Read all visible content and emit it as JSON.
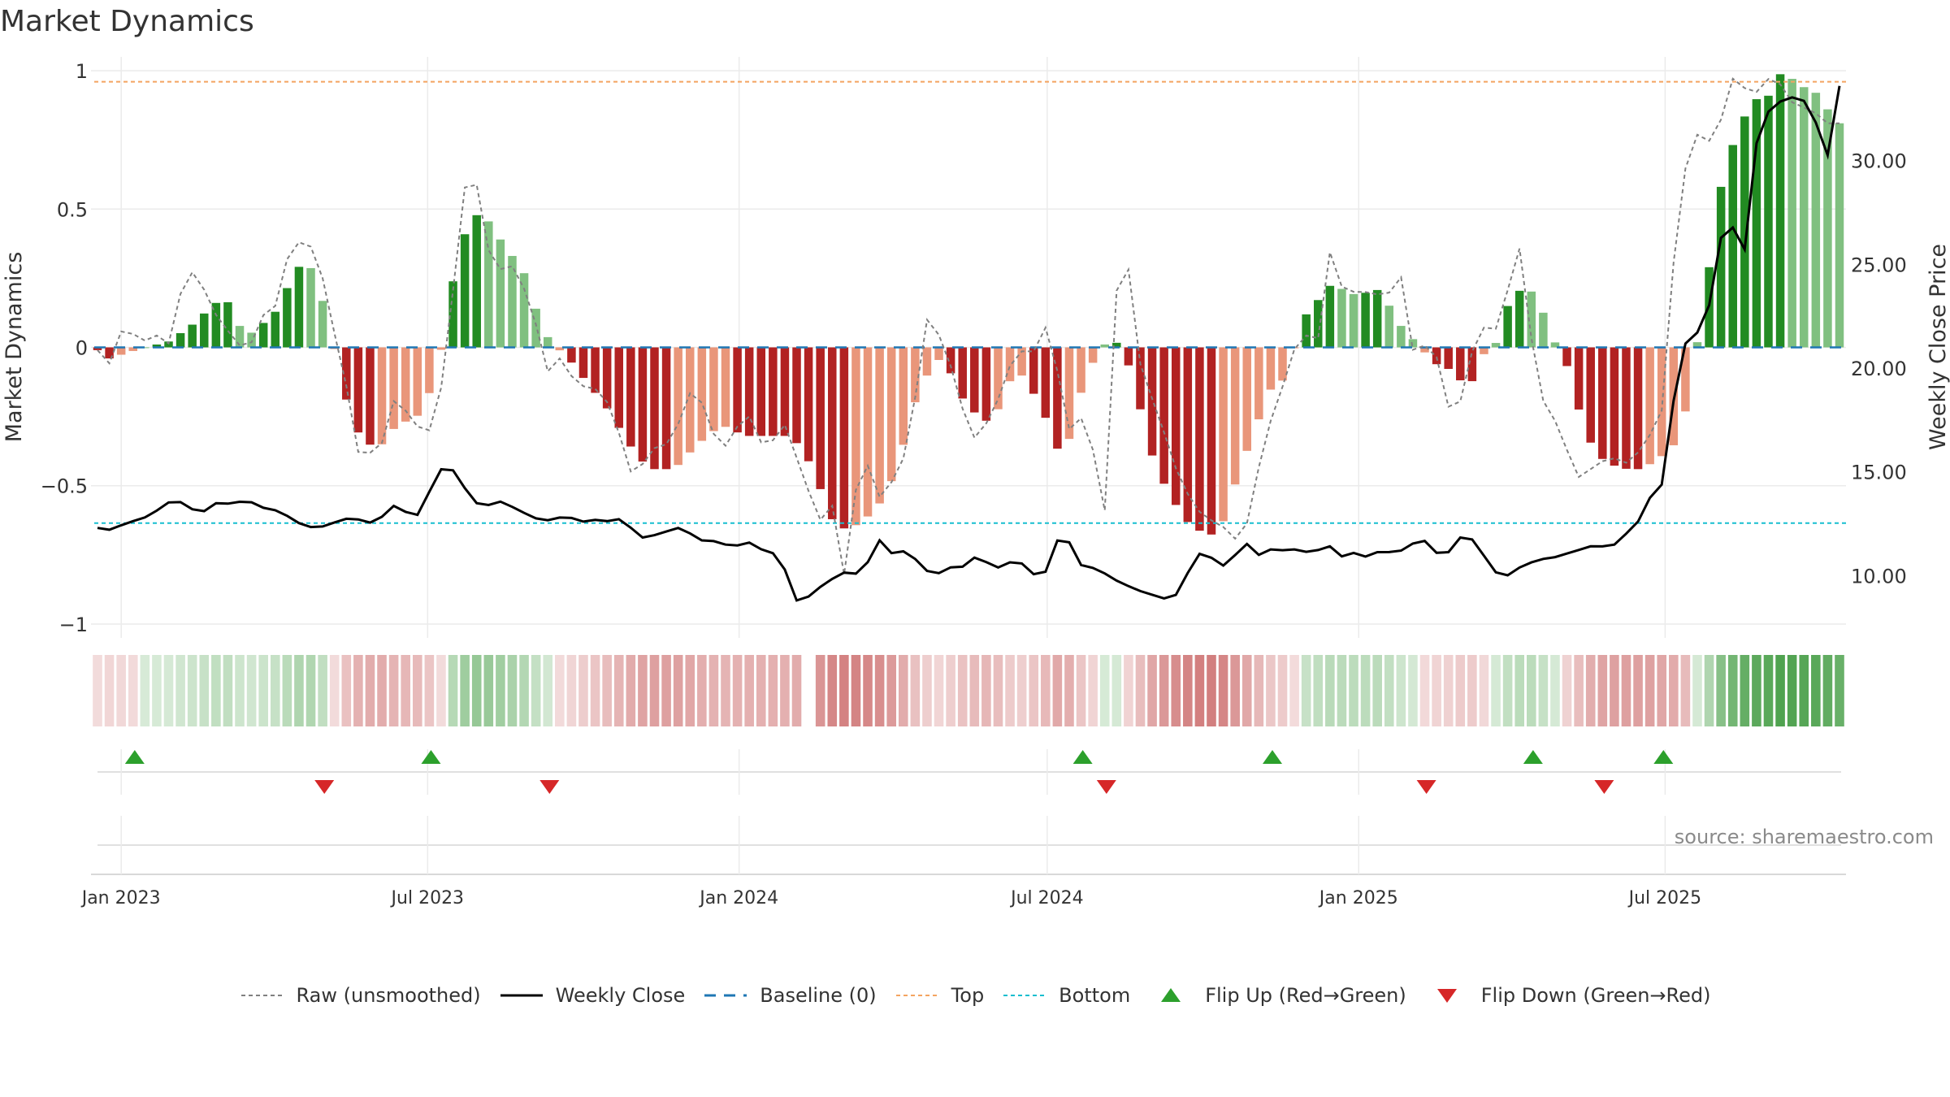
{
  "chart_data": {
    "type": "bar",
    "title": "Market Dynamics",
    "ylabel": "Market Dynamics",
    "y2label": "Weekly Close Price",
    "ylim": [
      -1.05,
      1.05
    ],
    "y2lim": [
      7.0,
      35.0
    ],
    "yticks": [
      {
        "v": 1,
        "label": "1"
      },
      {
        "v": 0.5,
        "label": "0.5"
      },
      {
        "v": 0,
        "label": "0"
      },
      {
        "v": -0.5,
        "label": "−0.5"
      },
      {
        "v": -1,
        "label": "−1"
      }
    ],
    "y2ticks": [
      {
        "v": 30,
        "label": "30.00"
      },
      {
        "v": 25,
        "label": "25.00"
      },
      {
        "v": 20,
        "label": "20.00"
      },
      {
        "v": 15,
        "label": "15.00"
      },
      {
        "v": 10,
        "label": "10.00"
      }
    ],
    "xticks": [
      {
        "date": "2023-01-01",
        "label": "Jan 2023"
      },
      {
        "date": "2023-07-01",
        "label": "Jul 2023"
      },
      {
        "date": "2024-01-01",
        "label": "Jan 2024"
      },
      {
        "date": "2024-07-01",
        "label": "Jul 2024"
      },
      {
        "date": "2025-01-01",
        "label": "Jan 2025"
      },
      {
        "date": "2025-07-01",
        "label": "Jul 2025"
      }
    ],
    "first_week": "2022-12-18",
    "last_week": "2025-10-12",
    "top_threshold": 0.96,
    "bottom_threshold": -0.635,
    "baseline": 0,
    "mood_anchors": [
      [
        0,
        -0.01
      ],
      [
        1,
        -0.04
      ],
      [
        4,
        0.0
      ],
      [
        6,
        0.02
      ],
      [
        8,
        0.08
      ],
      [
        10,
        0.16
      ],
      [
        11,
        0.17
      ],
      [
        12,
        0.08
      ],
      [
        13,
        0.05
      ],
      [
        15,
        0.12
      ],
      [
        17,
        0.29
      ],
      [
        18,
        0.3
      ],
      [
        19,
        0.19
      ],
      [
        20,
        0.02
      ],
      [
        21,
        -0.17
      ],
      [
        22,
        -0.3
      ],
      [
        23,
        -0.35
      ],
      [
        24,
        -0.36
      ],
      [
        25,
        -0.3
      ],
      [
        26,
        -0.27
      ],
      [
        27,
        -0.26
      ],
      [
        28,
        -0.19
      ],
      [
        29,
        -0.06
      ],
      [
        30,
        0.2
      ],
      [
        31,
        0.39
      ],
      [
        32,
        0.48
      ],
      [
        33,
        0.47
      ],
      [
        35,
        0.34
      ],
      [
        36,
        0.3
      ],
      [
        37,
        0.17
      ],
      [
        38,
        0.05
      ],
      [
        39,
        0.0
      ],
      [
        40,
        -0.04
      ],
      [
        42,
        -0.15
      ],
      [
        43,
        -0.2
      ],
      [
        45,
        -0.34
      ],
      [
        46,
        -0.4
      ],
      [
        47,
        -0.44
      ],
      [
        49,
        -0.44
      ],
      [
        51,
        -0.35
      ],
      [
        53,
        -0.28
      ],
      [
        55,
        -0.32
      ],
      [
        57,
        -0.32
      ],
      [
        59,
        -0.32
      ],
      [
        61,
        -0.45
      ],
      [
        62,
        -0.6
      ],
      [
        63,
        -0.65
      ],
      [
        64,
        -0.66
      ],
      [
        65,
        -0.62
      ],
      [
        66,
        -0.6
      ],
      [
        67,
        -0.52
      ],
      [
        68,
        -0.44
      ],
      [
        69,
        -0.25
      ],
      [
        70,
        -0.14
      ],
      [
        71,
        -0.06
      ],
      [
        72,
        -0.03
      ],
      [
        73,
        -0.16
      ],
      [
        74,
        -0.21
      ],
      [
        75,
        -0.26
      ],
      [
        76,
        -0.27
      ],
      [
        77,
        -0.18
      ],
      [
        78,
        -0.07
      ],
      [
        79,
        -0.13
      ],
      [
        80,
        -0.2
      ],
      [
        81,
        -0.3
      ],
      [
        82,
        -0.42
      ],
      [
        83,
        -0.26
      ],
      [
        84,
        -0.09
      ],
      [
        85,
        -0.03
      ],
      [
        86,
        0.04
      ],
      [
        87,
        0.0
      ],
      [
        88,
        -0.11
      ],
      [
        89,
        -0.3
      ],
      [
        90,
        -0.45
      ],
      [
        91,
        -0.52
      ],
      [
        92,
        -0.6
      ],
      [
        93,
        -0.65
      ],
      [
        94,
        -0.67
      ],
      [
        95,
        -0.68
      ],
      [
        96,
        -0.6
      ],
      [
        97,
        -0.44
      ],
      [
        98,
        -0.34
      ],
      [
        99,
        -0.22
      ],
      [
        100,
        -0.12
      ],
      [
        101,
        -0.12
      ],
      [
        102,
        0.05
      ],
      [
        103,
        0.15
      ],
      [
        104,
        0.18
      ],
      [
        105,
        0.24
      ],
      [
        106,
        0.2
      ],
      [
        107,
        0.19
      ],
      [
        108,
        0.2
      ],
      [
        109,
        0.21
      ],
      [
        110,
        0.13
      ],
      [
        111,
        0.06
      ],
      [
        112,
        0.02
      ],
      [
        113,
        -0.03
      ],
      [
        114,
        -0.07
      ],
      [
        115,
        -0.08
      ],
      [
        116,
        -0.13
      ],
      [
        117,
        -0.12
      ],
      [
        118,
        0.0
      ],
      [
        119,
        0.02
      ],
      [
        120,
        0.18
      ],
      [
        121,
        0.21
      ],
      [
        122,
        0.2
      ],
      [
        123,
        0.11
      ],
      [
        124,
        0.0
      ],
      [
        125,
        -0.08
      ],
      [
        126,
        -0.25
      ],
      [
        127,
        -0.36
      ],
      [
        128,
        -0.41
      ],
      [
        129,
        -0.43
      ],
      [
        130,
        -0.44
      ],
      [
        131,
        -0.44
      ],
      [
        132,
        -0.42
      ],
      [
        133,
        -0.39
      ],
      [
        134,
        -0.35
      ],
      [
        135,
        -0.22
      ],
      [
        136,
        0.04
      ],
      [
        137,
        0.31
      ],
      [
        138,
        0.6
      ],
      [
        139,
        0.74
      ],
      [
        140,
        0.84
      ],
      [
        141,
        0.9
      ],
      [
        142,
        0.91
      ],
      [
        143,
        0.99
      ],
      [
        144,
        0.97
      ],
      [
        145,
        0.94
      ],
      [
        146,
        0.92
      ],
      [
        147,
        0.86
      ],
      [
        148,
        0.81
      ]
    ],
    "raw_anchors": [
      [
        0,
        -0.01
      ],
      [
        1,
        -0.06
      ],
      [
        2,
        0.07
      ],
      [
        4,
        0.02
      ],
      [
        5,
        0.05
      ],
      [
        6,
        0.0
      ],
      [
        7,
        0.29
      ],
      [
        8,
        0.26
      ],
      [
        9,
        0.17
      ],
      [
        10,
        0.07
      ],
      [
        11,
        0.05
      ],
      [
        12,
        -0.05
      ],
      [
        13,
        0.13
      ],
      [
        14,
        0.09
      ],
      [
        15,
        0.3
      ],
      [
        16,
        0.38
      ],
      [
        17,
        0.38
      ],
      [
        18,
        0.27
      ],
      [
        19,
        0.06
      ],
      [
        20,
        -0.14
      ],
      [
        21,
        -0.39
      ],
      [
        22,
        -0.38
      ],
      [
        23,
        -0.34
      ],
      [
        24,
        -0.16
      ],
      [
        25,
        -0.25
      ],
      [
        26,
        -0.3
      ],
      [
        27,
        -0.3
      ],
      [
        28,
        -0.05
      ],
      [
        29,
        0.4
      ],
      [
        30,
        0.74
      ],
      [
        31,
        0.42
      ],
      [
        32,
        0.26
      ],
      [
        33,
        0.32
      ],
      [
        34,
        0.24
      ],
      [
        35,
        0.14
      ],
      [
        36,
        -0.1
      ],
      [
        37,
        -0.03
      ],
      [
        38,
        -0.1
      ],
      [
        39,
        -0.14
      ],
      [
        40,
        -0.15
      ],
      [
        41,
        -0.2
      ],
      [
        42,
        -0.32
      ],
      [
        43,
        -0.47
      ],
      [
        44,
        -0.41
      ],
      [
        45,
        -0.35
      ],
      [
        46,
        -0.35
      ],
      [
        47,
        -0.24
      ],
      [
        48,
        -0.12
      ],
      [
        49,
        -0.26
      ],
      [
        50,
        -0.36
      ],
      [
        51,
        -0.35
      ],
      [
        52,
        -0.2
      ],
      [
        53,
        -0.33
      ],
      [
        54,
        -0.37
      ],
      [
        55,
        -0.25
      ],
      [
        57,
        -0.5
      ],
      [
        58,
        -0.63
      ],
      [
        59,
        -0.56
      ],
      [
        60,
        -0.82
      ],
      [
        61,
        -0.5
      ],
      [
        62,
        -0.42
      ],
      [
        63,
        -0.56
      ],
      [
        64,
        -0.47
      ],
      [
        65,
        -0.38
      ],
      [
        66,
        -0.1
      ],
      [
        67,
        0.2
      ],
      [
        68,
        -0.05
      ],
      [
        69,
        -0.08
      ],
      [
        70,
        -0.35
      ],
      [
        71,
        -0.3
      ],
      [
        72,
        -0.24
      ],
      [
        73,
        -0.1
      ],
      [
        74,
        0.0
      ],
      [
        75,
        -0.05
      ],
      [
        76,
        0.1
      ],
      [
        77,
        -0.05
      ],
      [
        78,
        -0.3
      ],
      [
        79,
        -0.25
      ],
      [
        80,
        -0.37
      ],
      [
        81,
        -0.6
      ],
      [
        82,
        0.29
      ],
      [
        83,
        0.28
      ],
      [
        84,
        -0.14
      ],
      [
        85,
        -0.2
      ],
      [
        86,
        -0.35
      ],
      [
        87,
        -0.48
      ],
      [
        88,
        -0.56
      ],
      [
        89,
        -0.62
      ],
      [
        90,
        -0.63
      ],
      [
        91,
        -0.67
      ],
      [
        92,
        -0.72
      ],
      [
        93,
        -0.5
      ],
      [
        94,
        -0.3
      ],
      [
        95,
        -0.18
      ],
      [
        96,
        -0.02
      ],
      [
        97,
        0.05
      ],
      [
        98,
        0.0
      ],
      [
        99,
        0.35
      ],
      [
        100,
        0.22
      ],
      [
        101,
        0.2
      ],
      [
        102,
        0.2
      ],
      [
        103,
        0.19
      ],
      [
        104,
        0.2
      ],
      [
        105,
        0.27
      ],
      [
        106,
        -0.12
      ],
      [
        107,
        0.07
      ],
      [
        108,
        -0.1
      ],
      [
        109,
        -0.3
      ],
      [
        110,
        -0.1
      ],
      [
        111,
        0.08
      ],
      [
        112,
        0.06
      ],
      [
        113,
        0.08
      ],
      [
        114,
        0.46
      ],
      [
        115,
        0.1
      ],
      [
        116,
        -0.18
      ],
      [
        117,
        -0.25
      ],
      [
        118,
        -0.36
      ],
      [
        119,
        -0.47
      ],
      [
        120,
        -0.44
      ],
      [
        121,
        -0.41
      ],
      [
        122,
        -0.4
      ],
      [
        123,
        -0.42
      ],
      [
        124,
        -0.37
      ],
      [
        125,
        -0.3
      ],
      [
        126,
        -0.2
      ],
      [
        127,
        0.56
      ],
      [
        128,
        0.7
      ],
      [
        129,
        0.82
      ],
      [
        130,
        0.68
      ],
      [
        131,
        0.98
      ],
      [
        132,
        0.96
      ],
      [
        133,
        0.9
      ],
      [
        134,
        0.97
      ],
      [
        135,
        0.97
      ],
      [
        136,
        0.89
      ],
      [
        137,
        0.87
      ],
      [
        138,
        0.85
      ],
      [
        139,
        0.81
      ],
      [
        140,
        0.81
      ]
    ],
    "price_anchors": [
      [
        0,
        12.3
      ],
      [
        1,
        12.2
      ],
      [
        2,
        12.5
      ],
      [
        3,
        12.7
      ],
      [
        4,
        12.9
      ],
      [
        5,
        13.5
      ],
      [
        6,
        13.6
      ],
      [
        7,
        13.2
      ],
      [
        8,
        13.1
      ],
      [
        9,
        13.6
      ],
      [
        10,
        13.4
      ],
      [
        11,
        13.7
      ],
      [
        12,
        13.3
      ],
      [
        13,
        13.2
      ],
      [
        14,
        12.9
      ],
      [
        15,
        12.5
      ],
      [
        16,
        12.3
      ],
      [
        17,
        12.4
      ],
      [
        18,
        12.7
      ],
      [
        19,
        12.8
      ],
      [
        20,
        12.5
      ],
      [
        21,
        12.8
      ],
      [
        22,
        13.4
      ],
      [
        23,
        13.0
      ],
      [
        24,
        12.9
      ],
      [
        25,
        14.9
      ],
      [
        26,
        15.4
      ],
      [
        27,
        14.4
      ],
      [
        28,
        13.5
      ],
      [
        29,
        13.4
      ],
      [
        30,
        13.6
      ],
      [
        31,
        13.2
      ],
      [
        32,
        12.9
      ],
      [
        33,
        12.6
      ],
      [
        34,
        12.8
      ],
      [
        35,
        12.8
      ],
      [
        36,
        12.6
      ],
      [
        37,
        12.7
      ],
      [
        38,
        12.6
      ],
      [
        39,
        12.8
      ],
      [
        40,
        11.8
      ],
      [
        41,
        11.9
      ],
      [
        42,
        12.1
      ],
      [
        43,
        12.3
      ],
      [
        44,
        12.0
      ],
      [
        45,
        11.6
      ],
      [
        46,
        11.7
      ],
      [
        47,
        11.3
      ],
      [
        48,
        11.7
      ],
      [
        49,
        11.3
      ],
      [
        50,
        11.1
      ],
      [
        51,
        10.2
      ],
      [
        52,
        8.4
      ],
      [
        53,
        9.3
      ],
      [
        54,
        9.6
      ],
      [
        55,
        10.2
      ],
      [
        56,
        10.0
      ],
      [
        57,
        10.6
      ],
      [
        58,
        11.8
      ],
      [
        59,
        10.9
      ],
      [
        60,
        11.3
      ],
      [
        61,
        10.4
      ],
      [
        62,
        10.0
      ],
      [
        63,
        10.4
      ],
      [
        64,
        10.4
      ],
      [
        65,
        10.9
      ],
      [
        66,
        10.6
      ],
      [
        67,
        10.3
      ],
      [
        68,
        10.9
      ],
      [
        69,
        10.2
      ],
      [
        70,
        9.8
      ],
      [
        71,
        11.7
      ],
      [
        72,
        11.6
      ],
      [
        73,
        10.3
      ],
      [
        74,
        10.4
      ],
      [
        75,
        9.9
      ],
      [
        76,
        9.6
      ],
      [
        77,
        9.3
      ],
      [
        78,
        9.1
      ],
      [
        79,
        8.9
      ],
      [
        80,
        9.1
      ],
      [
        81,
        10.5
      ],
      [
        82,
        11.4
      ],
      [
        83,
        10.3
      ],
      [
        84,
        10.8
      ],
      [
        85,
        11.6
      ],
      [
        86,
        11.0
      ],
      [
        87,
        11.3
      ],
      [
        88,
        11.2
      ],
      [
        89,
        11.3
      ],
      [
        90,
        11.0
      ],
      [
        91,
        11.6
      ],
      [
        92,
        10.9
      ],
      [
        93,
        11.1
      ],
      [
        94,
        10.9
      ],
      [
        95,
        11.2
      ],
      [
        96,
        11.1
      ],
      [
        97,
        11.3
      ],
      [
        98,
        11.9
      ],
      [
        99,
        11.1
      ],
      [
        100,
        11.1
      ],
      [
        101,
        11.9
      ],
      [
        102,
        11.7
      ],
      [
        103,
        10.6
      ],
      [
        104,
        9.8
      ],
      [
        105,
        10.3
      ],
      [
        106,
        10.6
      ],
      [
        107,
        10.8
      ],
      [
        108,
        10.9
      ],
      [
        109,
        11.1
      ],
      [
        110,
        11.3
      ],
      [
        111,
        11.5
      ],
      [
        112,
        11.3
      ],
      [
        113,
        11.9
      ],
      [
        114,
        12.5
      ],
      [
        115,
        13.8
      ],
      [
        116,
        14.5
      ],
      [
        117,
        20.0
      ],
      [
        118,
        22.0
      ],
      [
        119,
        21.4
      ],
      [
        120,
        26.1
      ],
      [
        121,
        26.9
      ],
      [
        122,
        25.7
      ],
      [
        123,
        31.7
      ],
      [
        124,
        32.6
      ],
      [
        125,
        33.0
      ],
      [
        126,
        33.1
      ],
      [
        127,
        32.5
      ],
      [
        128,
        29.8
      ],
      [
        129,
        33.6
      ]
    ],
    "flip_up_dates": [
      "2023-01-09",
      "2023-07-03",
      "2024-07-22",
      "2024-11-11",
      "2025-04-14",
      "2025-06-30"
    ],
    "flip_down_dates": [
      "2023-05-01",
      "2023-09-11",
      "2024-08-05",
      "2025-02-10",
      "2025-05-26"
    ],
    "mood_strip_gap_index": 60,
    "legend": [
      {
        "key": "raw",
        "label": "Raw (unsmoothed)"
      },
      {
        "key": "close",
        "label": "Weekly Close"
      },
      {
        "key": "baseline",
        "label": "Baseline (0)"
      },
      {
        "key": "top",
        "label": "Top"
      },
      {
        "key": "bottom",
        "label": "Bottom"
      },
      {
        "key": "flip-up",
        "label": "Flip Up (Red→Green)"
      },
      {
        "key": "flip-down",
        "label": "Flip Down (Green→Red)"
      }
    ],
    "source": "source: sharemaestro.com",
    "colors": {
      "strong_green": "#228b22",
      "light_green": "#80c080",
      "strong_red": "#b22222",
      "light_red": "#e9967a",
      "close": "#000000",
      "raw": "#808080",
      "baseline": "#1f77b4",
      "top": "#f4a460",
      "bottom": "#17becf",
      "flip_up": "#2ca02c",
      "flip_down": "#d62728",
      "grid": "#ebebeb"
    }
  }
}
